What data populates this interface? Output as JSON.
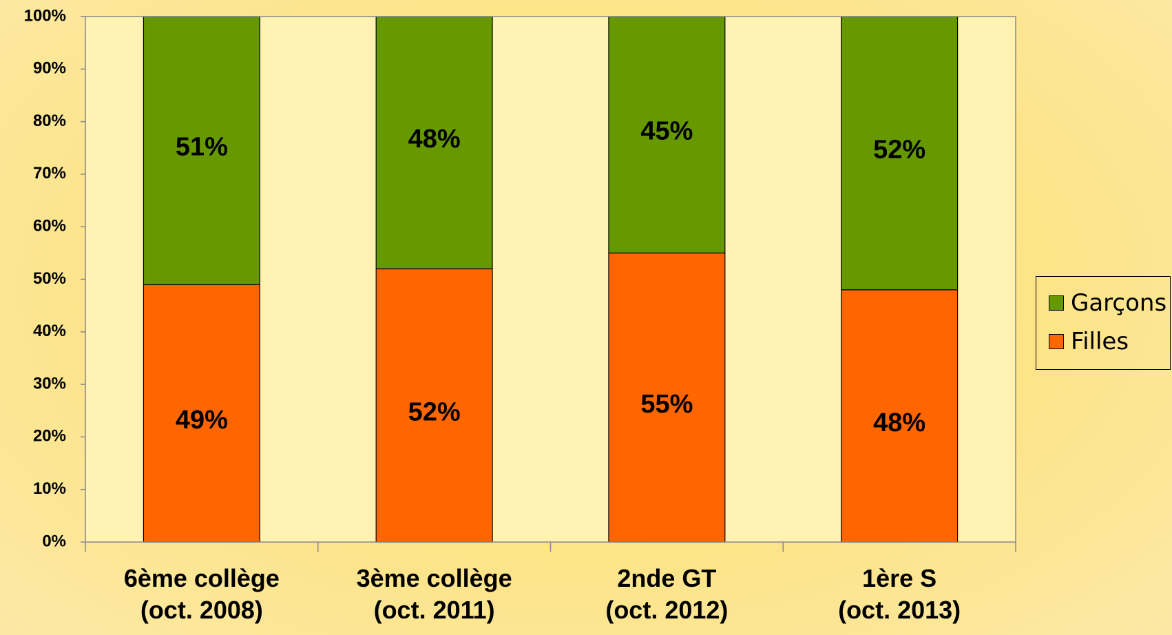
{
  "chart_data": {
    "type": "bar",
    "stacked": true,
    "percent_stacked": true,
    "categories": [
      [
        "6ème collège",
        "(oct. 2008)"
      ],
      [
        "3ème collège",
        "(oct. 2011)"
      ],
      [
        "2nde GT",
        "(oct. 2012)"
      ],
      [
        "1ère S",
        "(oct. 2013)"
      ]
    ],
    "series": [
      {
        "name": "Filles",
        "values": [
          49,
          52,
          55,
          48
        ],
        "labels": [
          "49%",
          "52%",
          "55%",
          "48%"
        ],
        "color": "#ff6600"
      },
      {
        "name": "Garçons",
        "values": [
          51,
          48,
          45,
          52
        ],
        "labels": [
          "51%",
          "48%",
          "45%",
          "52%"
        ],
        "color": "#669900"
      }
    ],
    "ylim": [
      0,
      100
    ],
    "yticks": [
      "0%",
      "10%",
      "20%",
      "30%",
      "40%",
      "50%",
      "60%",
      "70%",
      "80%",
      "90%",
      "100%"
    ],
    "plot_background": "#fff2b3",
    "legend_position": "right",
    "grid": false
  },
  "legend": {
    "items": [
      {
        "label": "Garçons",
        "color": "#669900"
      },
      {
        "label": "Filles",
        "color": "#ff6600"
      }
    ]
  }
}
